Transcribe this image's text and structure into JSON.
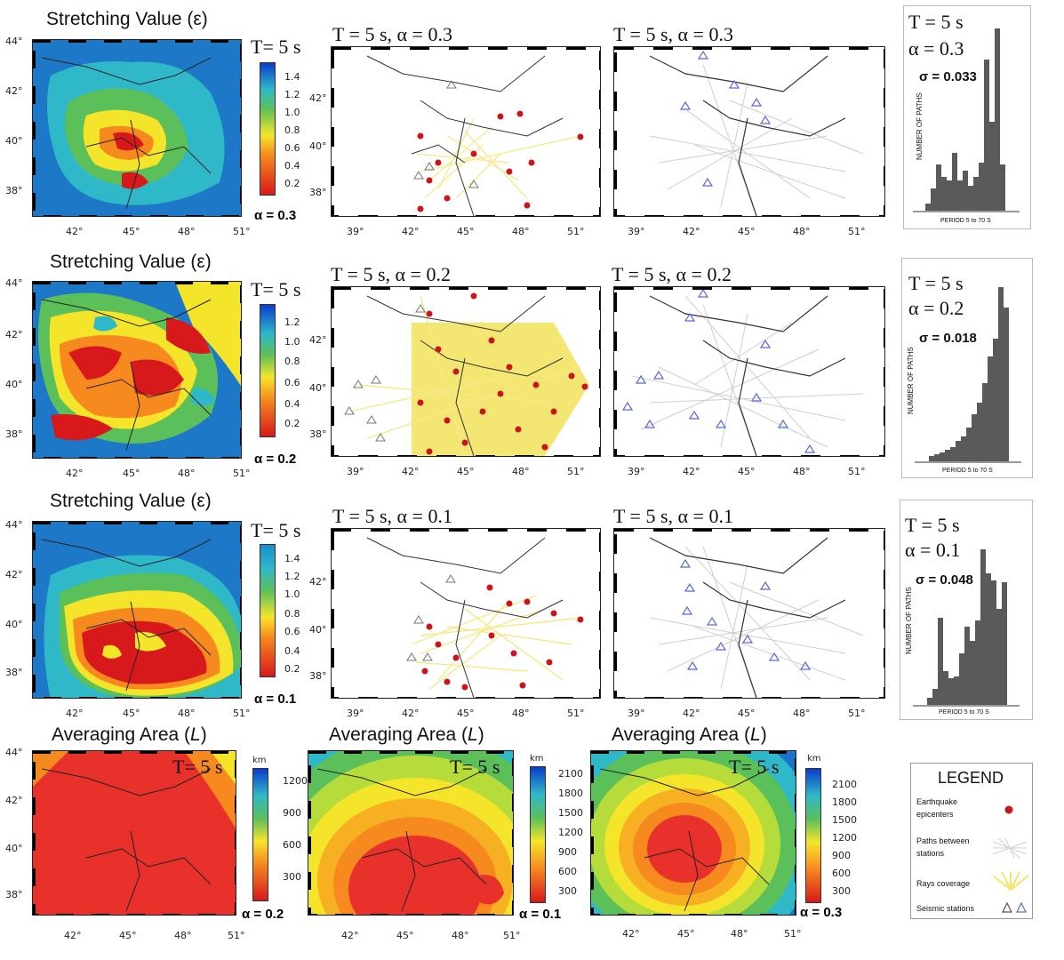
{
  "rows": [
    {
      "stretch_title": "Stretching Value (ε)",
      "t_label": "T= 5 s",
      "alpha_label": "α = 0.3",
      "cbar_ticks": [
        "1.4",
        "1.2",
        "1.0",
        "0.8",
        "0.6",
        "0.4",
        "0.2"
      ],
      "rays_title": "T = 5 s, α = 0.3",
      "paths_title": "T = 5 s, α = 0.3",
      "hist_t": "T = 5 s",
      "hist_alpha": "α = 0.3",
      "hist_sigma": "σ = 0.033"
    },
    {
      "stretch_title": "Stretching Value (ε)",
      "t_label": "T= 5 s",
      "alpha_label": "α = 0.2",
      "cbar_ticks": [
        "1.2",
        "1.0",
        "0.8",
        "0.6",
        "0.4",
        "0.2"
      ],
      "rays_title": "T = 5 s, α = 0.2",
      "paths_title": "T = 5 s, α = 0.2",
      "hist_t": "T = 5 s",
      "hist_alpha": "α = 0.2",
      "hist_sigma": "σ = 0.018"
    },
    {
      "stretch_title": "Stretching Value (ε)",
      "t_label": "T= 5 s",
      "alpha_label": "α = 0.1",
      "cbar_ticks": [
        "1.4",
        "1.2",
        "1.0",
        "0.8",
        "0.6",
        "0.4",
        "0.2"
      ],
      "rays_title": "T = 5 s, α = 0.1",
      "paths_title": "T = 5 s, α = 0.1",
      "hist_t": "T = 5 s",
      "hist_alpha": "α = 0.1",
      "hist_sigma": "σ = 0.048"
    }
  ],
  "lat_ticks": [
    "44°",
    "42°",
    "40°",
    "38°"
  ],
  "lon_ticks_main": [
    "42°",
    "45°",
    "48°",
    "51°"
  ],
  "lon_ticks_mid": [
    "39°",
    "42°",
    "45°",
    "48°",
    "51°"
  ],
  "lat_ticks_mid": [
    "42°",
    "40°",
    "38°"
  ],
  "hist_ylabel": "NUMBER OF PATHS",
  "hist_xlabel": "PERIOD 5 to 70 S",
  "averaging": [
    {
      "title_a": "Averaging Area (",
      "title_b": "L",
      "title_c": ")",
      "t_label": "T= 5 s",
      "unit": "km",
      "ticks": [
        "1200",
        "900",
        "600",
        "300"
      ],
      "alpha_label": "α = 0.2"
    },
    {
      "title_a": "Averaging Area (",
      "title_b": "L",
      "title_c": ")",
      "t_label": "T= 5 s",
      "unit": "km",
      "ticks": [
        "2100",
        "1800",
        "1500",
        "1200",
        "900",
        "600",
        "300"
      ],
      "alpha_label": "α = 0.1"
    },
    {
      "title_a": "Averaging Area (",
      "title_b": "L",
      "title_c": ")",
      "t_label": "T= 5 s",
      "unit": "km",
      "ticks": [
        "2100",
        "1800",
        "1500",
        "1200",
        "900",
        "600",
        "300"
      ],
      "alpha_label": "α = 0.3"
    }
  ],
  "legend": {
    "title": "LEGEND",
    "items": [
      {
        "label_1": "Earthquake",
        "label_2": "epicenters",
        "icon": "red-dot-icon"
      },
      {
        "label_1": "Paths between",
        "label_2": "stations",
        "icon": "gray-paths-icon"
      },
      {
        "label_1": "Rays coverage",
        "label_2": "",
        "icon": "yellow-rays-icon"
      },
      {
        "label_1": "Seismic stations",
        "label_2": "",
        "icon": "triangle-icon"
      }
    ]
  },
  "colors": {
    "red": "#d7191c",
    "orange": "#f68a1e",
    "yellow": "#f5e52a",
    "green": "#5cc05a",
    "cyan": "#2fb8c8",
    "blue": "#1a73c8",
    "darkblue": "#0a3ccc",
    "ray_yellow": "#f3e46a",
    "epicenter_red": "#c8161d",
    "station_blue": "#5a6bd8"
  }
}
